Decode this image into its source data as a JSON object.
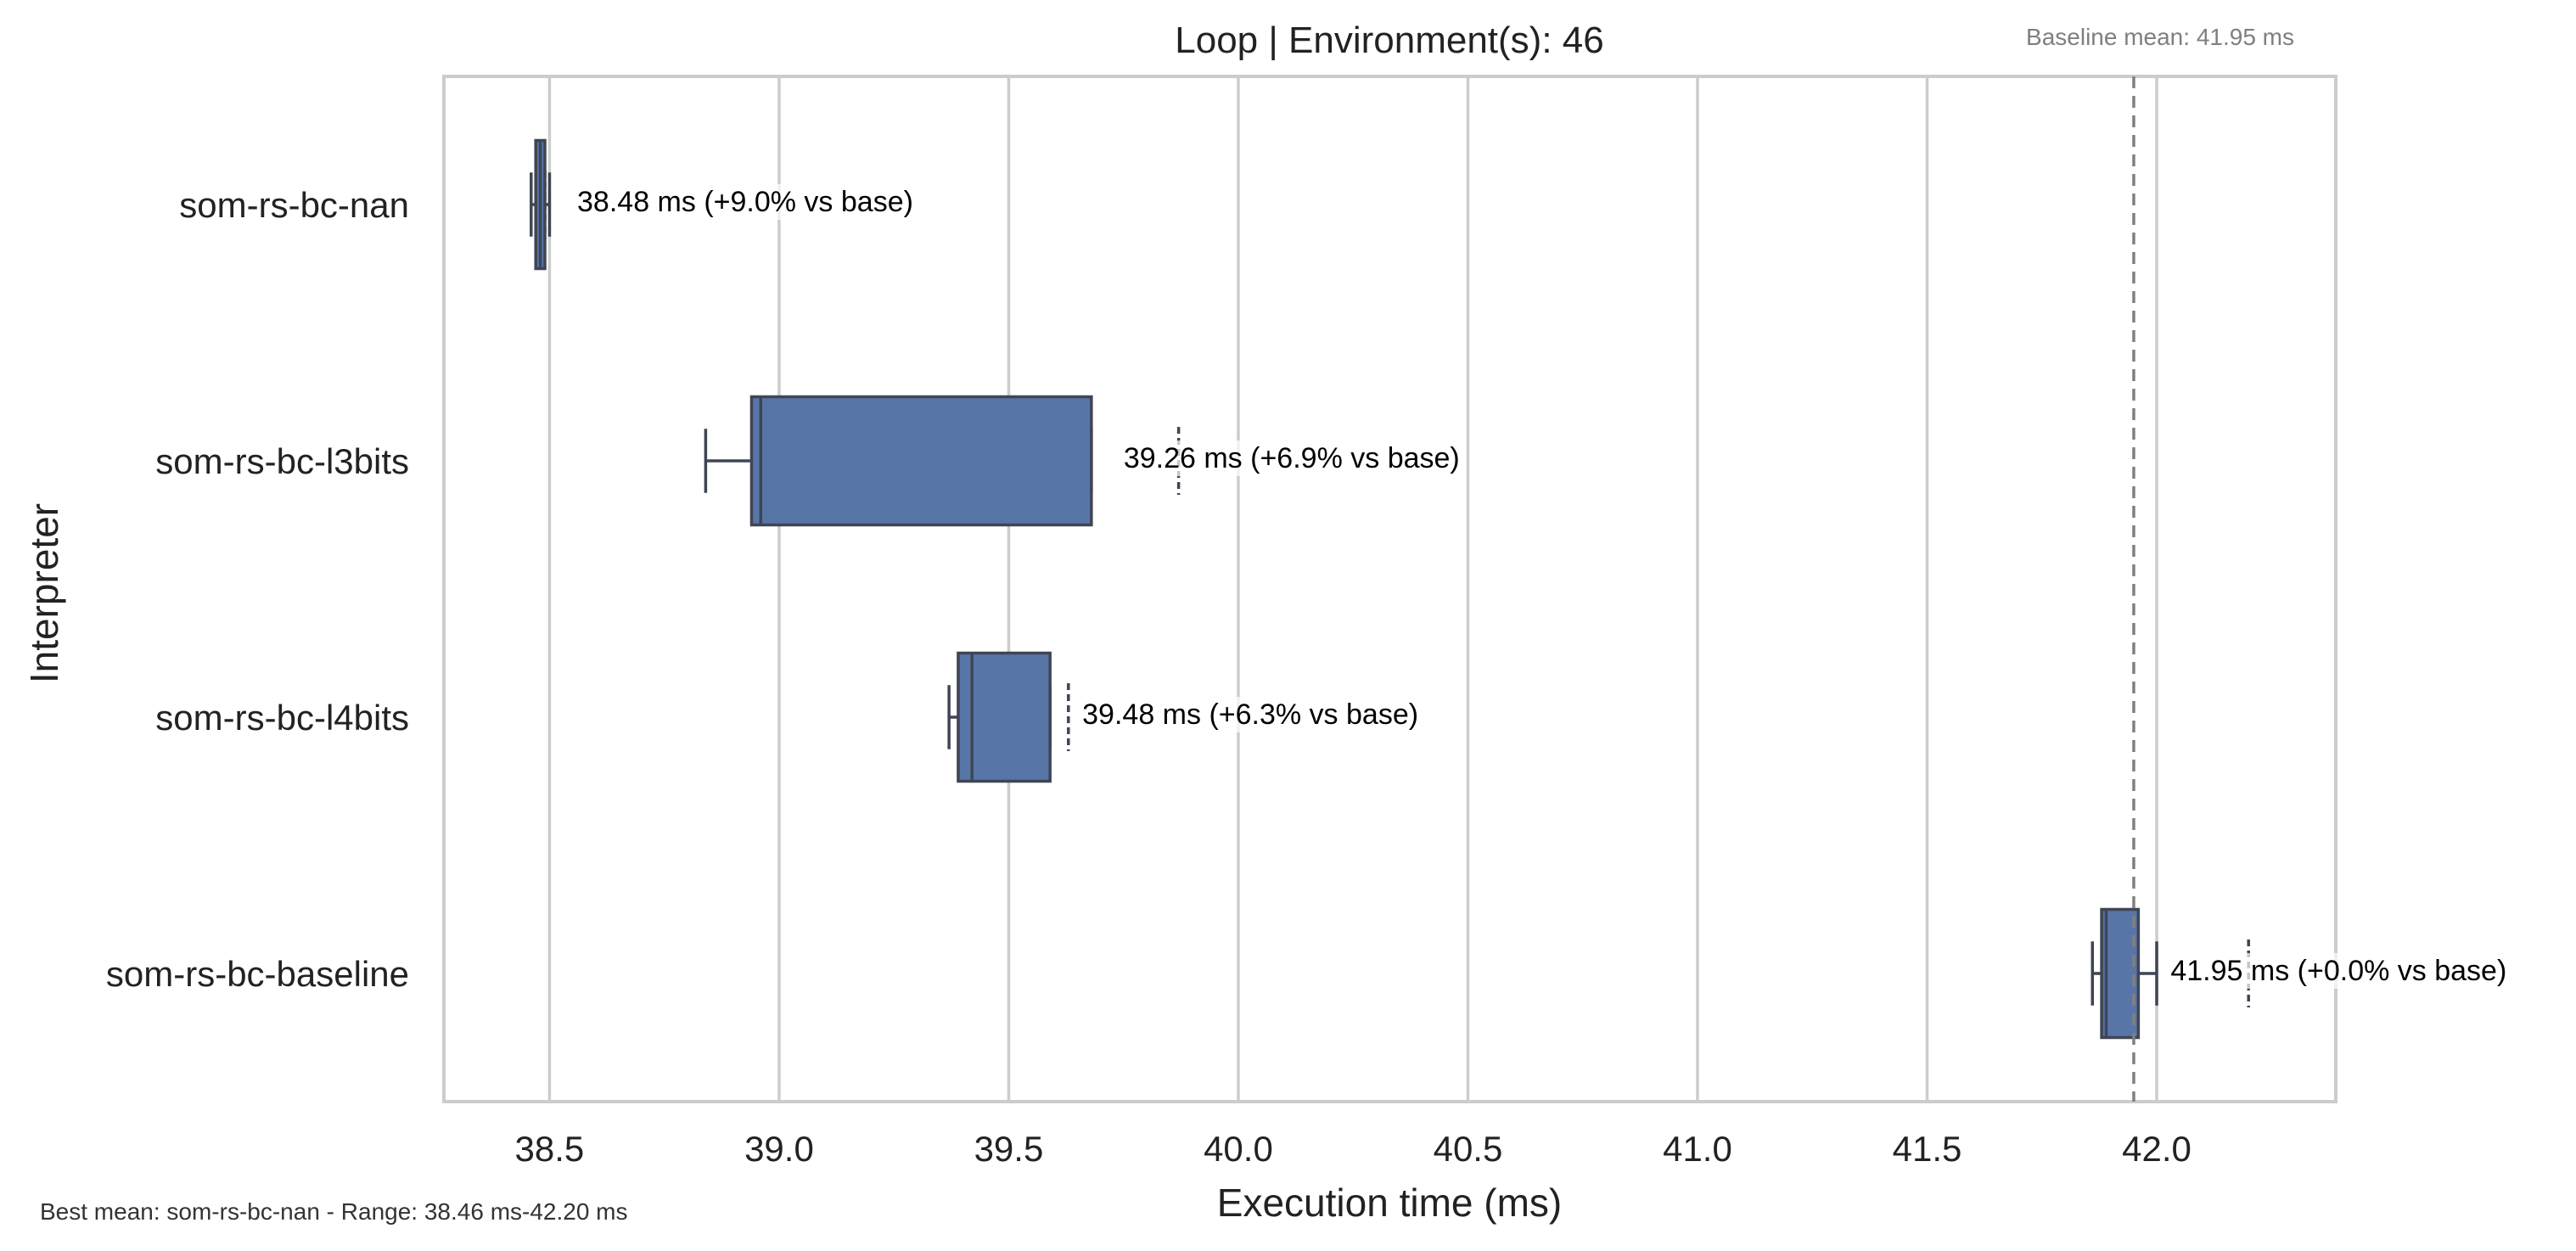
{
  "chart_data": {
    "type": "box",
    "orientation": "horizontal",
    "title": "Loop | Environment(s): 46",
    "xlabel": "Execution time (ms)",
    "ylabel": "Interpreter",
    "xlim": [
      38.27,
      42.39
    ],
    "x_ticks": [
      "38.5",
      "39.0",
      "39.5",
      "40.0",
      "40.5",
      "41.0",
      "41.5",
      "42.0"
    ],
    "grid": "vertical",
    "baseline_value": 41.95,
    "baseline_label": "Baseline mean: 41.95 ms",
    "footer": "Best mean: som-rs-bc-nan - Range: 38.46 ms-42.20 ms",
    "categories": [
      "som-rs-bc-nan",
      "som-rs-bc-l3bits",
      "som-rs-bc-l4bits",
      "som-rs-bc-baseline"
    ],
    "boxes": [
      {
        "name": "som-rs-bc-nan",
        "whisker_low": 38.46,
        "q1": 38.47,
        "median": 38.48,
        "q3": 38.49,
        "whisker_high": 38.5,
        "fliers": [
          38.49
        ],
        "label": "38.48 ms  (+9.0% vs base)"
      },
      {
        "name": "som-rs-bc-l3bits",
        "whisker_low": 38.84,
        "q1": 38.94,
        "median": 38.96,
        "q3": 39.68,
        "whisker_high": 39.68,
        "fliers": [
          39.87
        ],
        "label": "39.26 ms  (+6.9% vs base)"
      },
      {
        "name": "som-rs-bc-l4bits",
        "whisker_low": 39.37,
        "q1": 39.39,
        "median": 39.42,
        "q3": 39.59,
        "whisker_high": 39.59,
        "fliers": [
          39.63
        ],
        "label": "39.48 ms  (+6.3% vs base)"
      },
      {
        "name": "som-rs-bc-baseline",
        "whisker_low": 41.86,
        "q1": 41.88,
        "median": 41.89,
        "q3": 41.96,
        "whisker_high": 42.0,
        "fliers": [
          42.2
        ],
        "label": "41.95 ms  (+0.0% vs base)"
      }
    ],
    "colors": {
      "box_fill": "#5875a8",
      "box_edge": "#3f4553",
      "grid": "#cccccc",
      "frame": "#cccccc",
      "baseline_line": "#808080",
      "label_bg": "#ffffff"
    }
  }
}
